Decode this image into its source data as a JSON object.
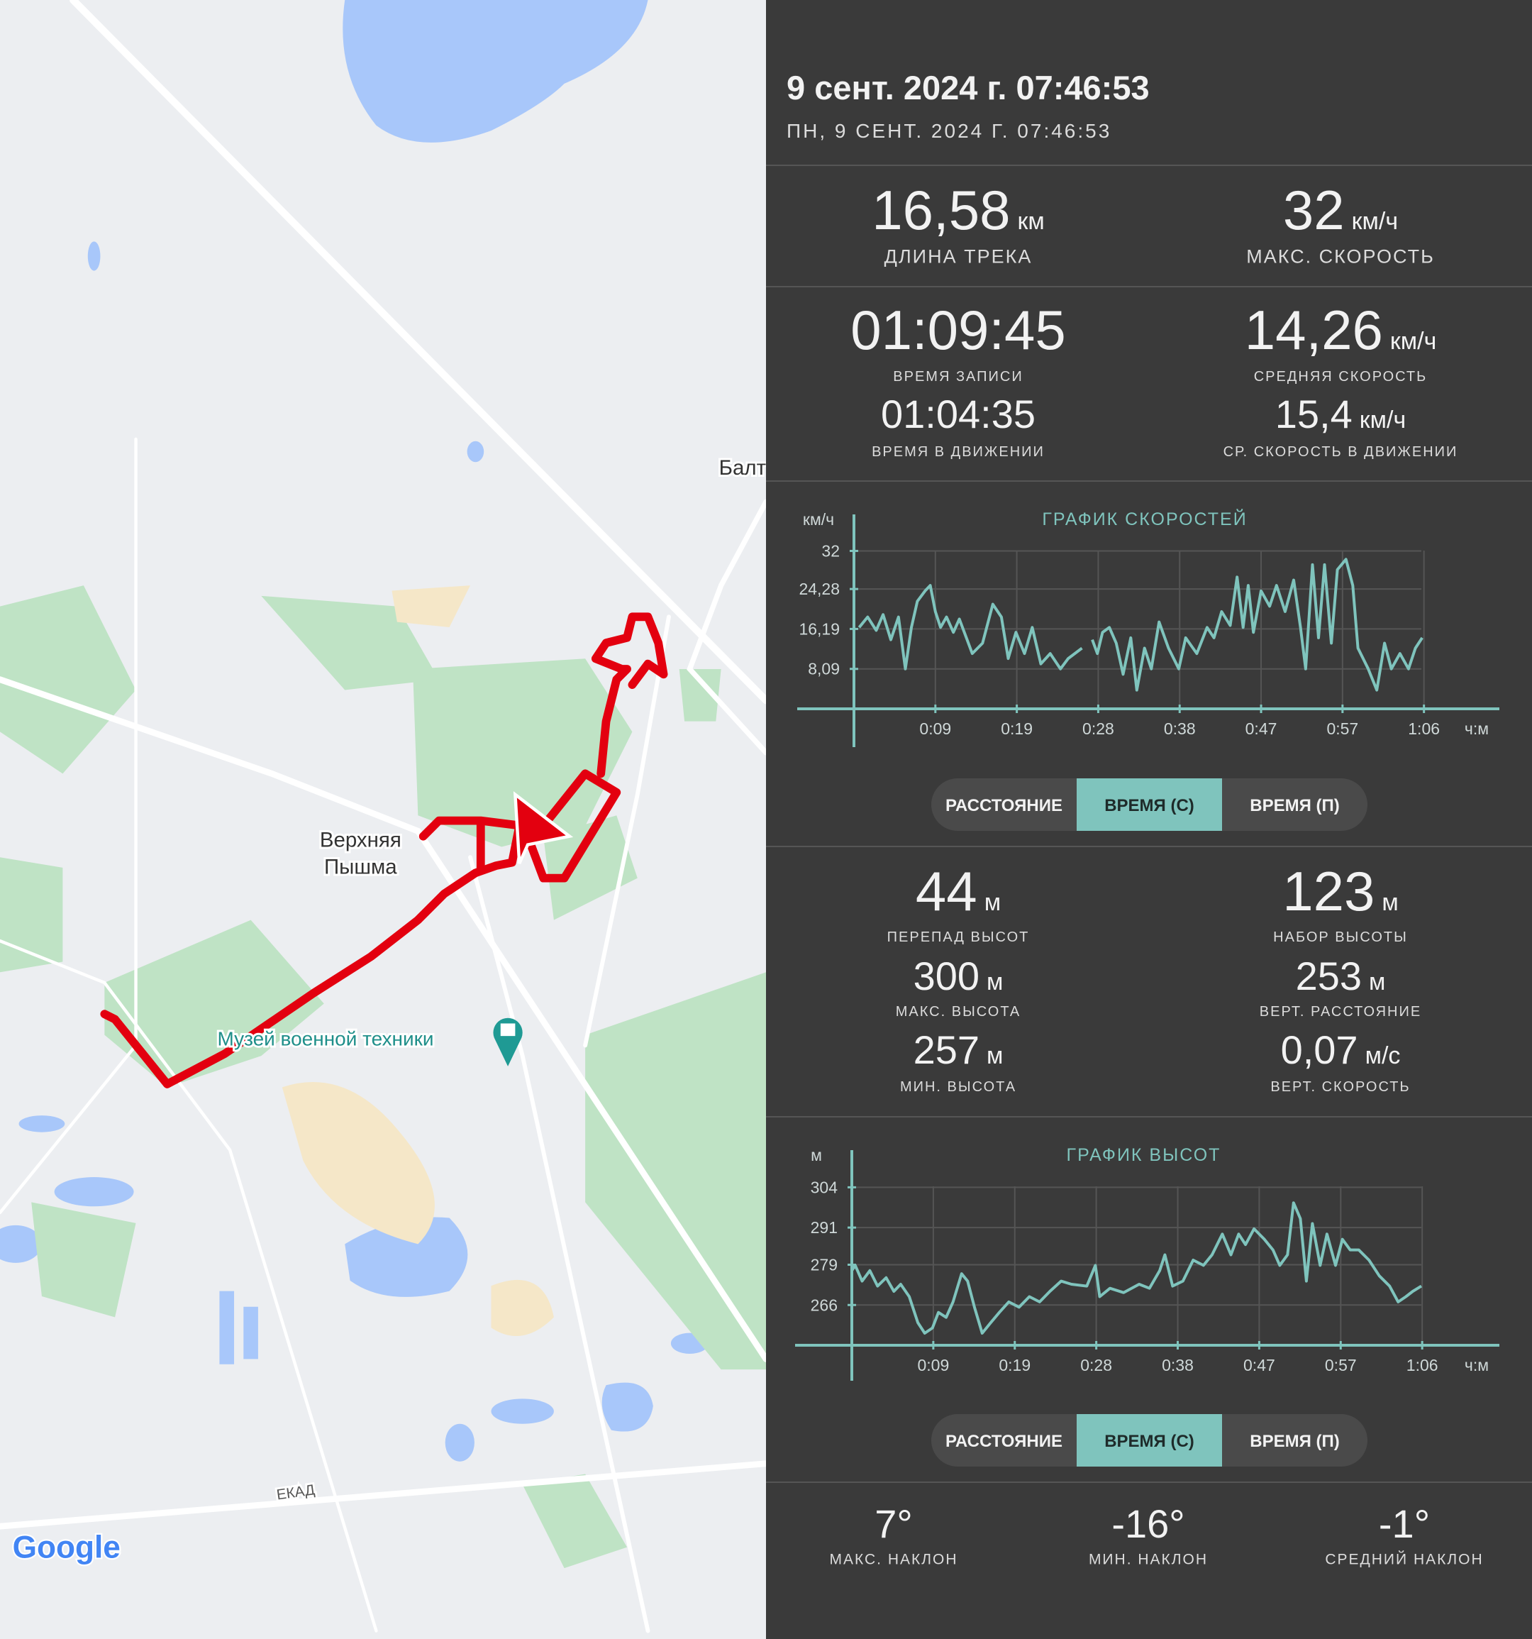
{
  "header": {
    "title": "9 сент. 2024 г. 07:46:53",
    "subtitle": "ПН, 9 СЕНТ. 2024 Г. 07:46:53"
  },
  "map": {
    "labels": [
      "Верхняя",
      "Пышма",
      "Музей военной техники",
      "ЕКАД",
      "Балт",
      "Google"
    ]
  },
  "summary": [
    {
      "value": "16,58",
      "unit": "км",
      "label": "ДЛИНА ТРЕКА"
    },
    {
      "value": "32",
      "unit": "км/ч",
      "label": "МАКС. СКОРОСТЬ"
    },
    {
      "value": "01:09:45",
      "label": "ВРЕМЯ ЗАПИСИ"
    },
    {
      "value": "14,26",
      "unit": "км/ч",
      "label": "СРЕДНЯЯ СКОРОСТЬ"
    },
    {
      "value": "01:04:35",
      "label": "ВРЕМЯ В ДВИЖЕНИИ"
    },
    {
      "value": "15,4",
      "unit": "км/ч",
      "label": "СР. СКОРОСТЬ В ДВИЖЕНИИ"
    }
  ],
  "altitude_stats": [
    {
      "value": "44",
      "unit": "м",
      "label": "ПЕРЕПАД ВЫСОТ"
    },
    {
      "value": "123",
      "unit": "м",
      "label": "НАБОР ВЫСОТЫ"
    },
    {
      "value": "300",
      "unit": "м",
      "label": "МАКС. ВЫСОТА"
    },
    {
      "value": "253",
      "unit": "м",
      "label": "ВЕРТ. РАССТОЯНИЕ"
    },
    {
      "value": "257",
      "unit": "м",
      "label": "МИН. ВЫСОТА"
    },
    {
      "value": "0,07",
      "unit": "м/с",
      "label": "ВЕРТ. СКОРОСТЬ"
    }
  ],
  "slope_stats": [
    {
      "value": "7°",
      "label": "МАКС. НАКЛОН"
    },
    {
      "value": "-16°",
      "label": "МИН. НАКЛОН"
    },
    {
      "value": "-1°",
      "label": "СРЕДНИЙ НАКЛОН"
    }
  ],
  "speed_controls": [
    "РАССТОЯНИЕ",
    "ВРЕМЯ (С)",
    "ВРЕМЯ (П)"
  ],
  "altitude_controls": [
    "РАССТОЯНИЕ",
    "ВРЕМЯ (С)",
    "ВРЕМЯ (П)"
  ],
  "chart_data": [
    {
      "type": "line",
      "title": "ГРАФИК СКОРОСТЕЙ",
      "y_label": "км/ч",
      "x_label": "ч:м",
      "color": "#7fc4bd",
      "grid": true,
      "x": [
        0.6,
        1.6,
        2.6,
        3.4,
        4.3,
        5.2,
        6.0,
        6.7,
        7.4,
        8.3,
        8.9,
        9.5,
        10.1,
        10.8,
        11.6,
        12.3,
        13.8,
        15.0,
        16.2,
        17.2,
        18.0,
        18.9,
        19.9,
        20.8,
        21.8,
        22.9,
        24.1,
        25.0,
        26.6,
        27.2,
        27.8,
        28.4,
        29.0,
        29.8,
        30.6,
        31.4,
        32.3,
        33.0,
        33.9,
        34.7,
        35.6,
        36.7,
        37.9,
        38.7,
        40.0,
        41.2,
        42.0,
        42.9,
        43.9,
        44.7,
        45.4,
        46.0,
        46.6,
        47.5,
        48.5,
        49.3,
        50.3,
        51.3,
        52.1,
        52.7,
        53.5,
        54.2,
        54.9,
        55.7,
        56.4,
        57.4,
        58.2,
        58.8,
        60.0,
        61.0,
        61.9,
        62.7,
        63.7,
        64.7,
        65.5,
        66.3
      ],
      "values": [
        16.5,
        18.6,
        15.9,
        19.1,
        14.0,
        18.6,
        8.1,
        16.5,
        21.8,
        23.9,
        25.0,
        19.7,
        16.5,
        18.6,
        15.5,
        18.2,
        11.2,
        13.3,
        21.2,
        18.6,
        10.2,
        15.5,
        11.2,
        16.5,
        9.1,
        11.2,
        8.1,
        10.2,
        12.3,
        null,
        14.0,
        11.2,
        15.5,
        16.5,
        13.3,
        7.0,
        14.4,
        3.8,
        12.3,
        8.1,
        17.6,
        12.3,
        8.1,
        14.4,
        11.2,
        16.5,
        14.4,
        19.7,
        16.9,
        26.7,
        16.5,
        25.0,
        15.5,
        23.9,
        20.8,
        25.0,
        19.7,
        26.1,
        16.5,
        8.1,
        29.2,
        14.4,
        29.2,
        13.3,
        28.2,
        30.3,
        25.0,
        12.3,
        8.1,
        3.8,
        13.3,
        8.1,
        11.2,
        8.1,
        12.3,
        14.4
      ],
      "xlim": [
        0,
        75.3
      ],
      "ylim": [
        0,
        39.4
      ],
      "xticks": [
        {
          "value": 9.5,
          "label": "0:09"
        },
        {
          "value": 19,
          "label": "0:19"
        },
        {
          "value": 28.5,
          "label": "0:28"
        },
        {
          "value": 38,
          "label": "0:38"
        },
        {
          "value": 47.5,
          "label": "0:47"
        },
        {
          "value": 57,
          "label": "0:57"
        },
        {
          "value": 66.5,
          "label": "1:06"
        }
      ],
      "yticks": [
        {
          "value": 8.09,
          "label": "8,09"
        },
        {
          "value": 16.19,
          "label": "16,19"
        },
        {
          "value": 24.28,
          "label": "24,28"
        },
        32
      ]
    },
    {
      "type": "line",
      "title": "ГРАФИК ВЫСОТ",
      "y_label": "м",
      "x_label": "ч:м",
      "color": "#7fc4bd",
      "grid": true,
      "x": [
        0,
        0.4,
        1.2,
        2.1,
        3.0,
        4.0,
        4.9,
        5.7,
        6.7,
        7.7,
        8.5,
        9.4,
        10.1,
        11.0,
        11.8,
        12.8,
        13.5,
        14.3,
        15.2,
        16.2,
        17.2,
        18.3,
        19.5,
        20.7,
        21.9,
        23.1,
        24.4,
        25.6,
        27.4,
        28.4,
        28.9,
        30.1,
        31.7,
        33.5,
        34.7,
        35.9,
        36.5,
        37.4,
        38.6,
        39.8,
        41.0,
        42.0,
        43.2,
        44.2,
        45.1,
        45.9,
        46.9,
        48.1,
        49.1,
        49.9,
        50.8,
        51.5,
        52.3,
        53.0,
        53.7,
        54.6,
        55.4,
        56.4,
        57.2,
        58.1,
        59.1,
        60.3,
        61.5,
        62.7,
        63.7,
        64.6,
        65.4,
        66.4
      ],
      "values": [
        277.1,
        278.8,
        273.7,
        277.1,
        272.1,
        274.8,
        270.4,
        272.7,
        268.7,
        260.3,
        256.9,
        258.6,
        263.6,
        262.0,
        267.0,
        276.1,
        273.7,
        265.3,
        256.9,
        260.3,
        263.6,
        267.0,
        265.3,
        268.7,
        267.0,
        270.4,
        273.7,
        272.7,
        272.1,
        278.8,
        268.7,
        271.4,
        270.0,
        272.7,
        271.4,
        277.1,
        282.2,
        272.1,
        273.7,
        280.5,
        278.8,
        282.2,
        288.9,
        282.2,
        288.9,
        285.5,
        290.6,
        287.2,
        283.8,
        278.8,
        282.2,
        299.0,
        293.9,
        273.7,
        292.3,
        278.8,
        288.9,
        278.8,
        287.2,
        283.8,
        283.8,
        280.5,
        275.4,
        272.1,
        267.0,
        268.7,
        270.4,
        272.1
      ],
      "xlim": [
        0,
        75.5
      ],
      "ylim": [
        253,
        316
      ],
      "xticks": [
        {
          "value": 9.5,
          "label": "0:09"
        },
        {
          "value": 19,
          "label": "0:19"
        },
        {
          "value": 28.5,
          "label": "0:28"
        },
        {
          "value": 38,
          "label": "0:38"
        },
        {
          "value": 47.5,
          "label": "0:47"
        },
        {
          "value": 57,
          "label": "0:57"
        },
        {
          "value": 66.5,
          "label": "1:06"
        }
      ],
      "yticks": [
        266,
        279,
        291,
        304
      ]
    }
  ]
}
